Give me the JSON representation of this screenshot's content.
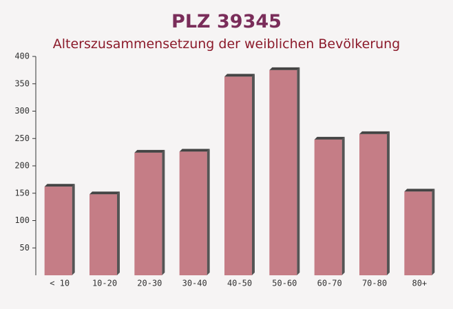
{
  "chart_data": {
    "type": "bar",
    "title": "PLZ 39345",
    "subtitle": "Alterszusammensetzung der weiblichen Bevölkerung",
    "categories": [
      "< 10",
      "10-20",
      "20-30",
      "30-40",
      "40-50",
      "50-60",
      "60-70",
      "70-80",
      "80+"
    ],
    "values": [
      162,
      148,
      224,
      226,
      363,
      375,
      248,
      258,
      153
    ],
    "color": "#c0707a",
    "ylim": [
      0,
      400
    ],
    "yticks": [
      50,
      100,
      150,
      200,
      250,
      300,
      350,
      400
    ]
  }
}
